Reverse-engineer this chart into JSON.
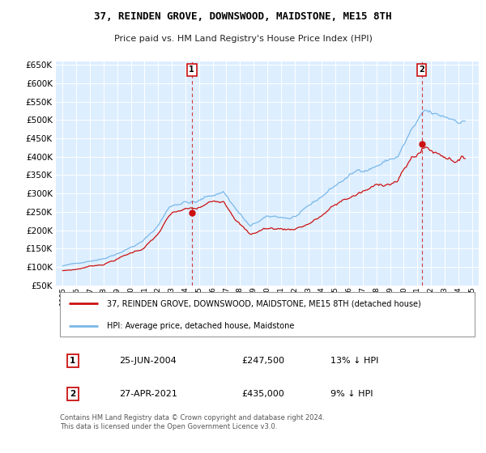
{
  "title": "37, REINDEN GROVE, DOWNSWOOD, MAIDSTONE, ME15 8TH",
  "subtitle": "Price paid vs. HM Land Registry's House Price Index (HPI)",
  "legend_line1": "37, REINDEN GROVE, DOWNSWOOD, MAIDSTONE, ME15 8TH (detached house)",
  "legend_line2": "HPI: Average price, detached house, Maidstone",
  "annotation1_date": "25-JUN-2004",
  "annotation1_price": "£247,500",
  "annotation1_hpi": "13% ↓ HPI",
  "annotation2_date": "27-APR-2021",
  "annotation2_price": "£435,000",
  "annotation2_hpi": "9% ↓ HPI",
  "footer": "Contains HM Land Registry data © Crown copyright and database right 2024.\nThis data is licensed under the Open Government Licence v3.0.",
  "hpi_color": "#7ab8e8",
  "price_color": "#cc1111",
  "plot_bg": "#ddeeff",
  "ylim_bottom": 50000,
  "ylim_top": 660000,
  "sale1_year": 2004.46,
  "sale1_value": 247500,
  "sale2_year": 2021.32,
  "sale2_value": 435000,
  "xtick_start": 1995,
  "xtick_end": 2025,
  "xlim_left": 1994.5,
  "xlim_right": 2025.5
}
